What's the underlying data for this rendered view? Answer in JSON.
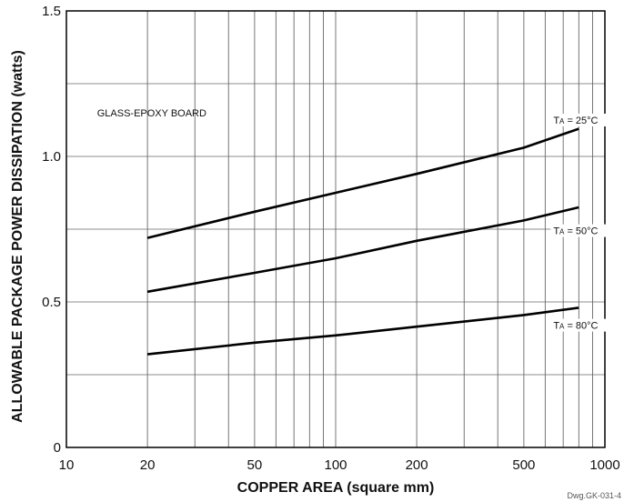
{
  "chart_data": {
    "type": "line",
    "x_scale": "log",
    "xlabel": "COPPER AREA (square mm)",
    "ylabel": "ALLOWABLE PACKAGE POWER DISSIPATION (watts)",
    "xlim": [
      10,
      1000
    ],
    "ylim": [
      0,
      1.5
    ],
    "x_ticks": [
      10,
      20,
      50,
      100,
      200,
      500,
      1000
    ],
    "x_tick_labels": [
      "10",
      "20",
      "50",
      "100",
      "200",
      "500",
      "1000"
    ],
    "x_gridlines": [
      20,
      30,
      40,
      50,
      60,
      70,
      80,
      90,
      100,
      200,
      300,
      400,
      500,
      600,
      700,
      800,
      900
    ],
    "y_ticks": [
      0,
      0.5,
      1.0,
      1.5
    ],
    "y_tick_labels": [
      "0",
      "0.5",
      "1.0",
      "1.5"
    ],
    "y_gridlines": [
      0.25,
      0.5,
      0.75,
      1.0,
      1.25
    ],
    "grid": true,
    "annotation": "GLASS-EPOXY BOARD",
    "footnote": "Dwg.GK-031-4",
    "series": [
      {
        "name": "TA = 25°C",
        "label_main": "T",
        "label_sub": "A",
        "label_rest": " = 25°C",
        "label_at": [
          800,
          1.125
        ],
        "x": [
          20,
          50,
          100,
          200,
          500,
          800
        ],
        "y": [
          0.72,
          0.81,
          0.875,
          0.94,
          1.03,
          1.095
        ]
      },
      {
        "name": "TA = 50°C",
        "label_main": "T",
        "label_sub": "A",
        "label_rest": " = 50°C",
        "label_at": [
          800,
          0.745
        ],
        "x": [
          20,
          50,
          100,
          200,
          500,
          800
        ],
        "y": [
          0.535,
          0.6,
          0.65,
          0.71,
          0.78,
          0.825
        ]
      },
      {
        "name": "TA = 80°C",
        "label_main": "T",
        "label_sub": "A",
        "label_rest": " = 80°C",
        "label_at": [
          800,
          0.42
        ],
        "x": [
          20,
          50,
          100,
          200,
          500,
          800
        ],
        "y": [
          0.32,
          0.36,
          0.385,
          0.415,
          0.455,
          0.48
        ]
      }
    ]
  }
}
